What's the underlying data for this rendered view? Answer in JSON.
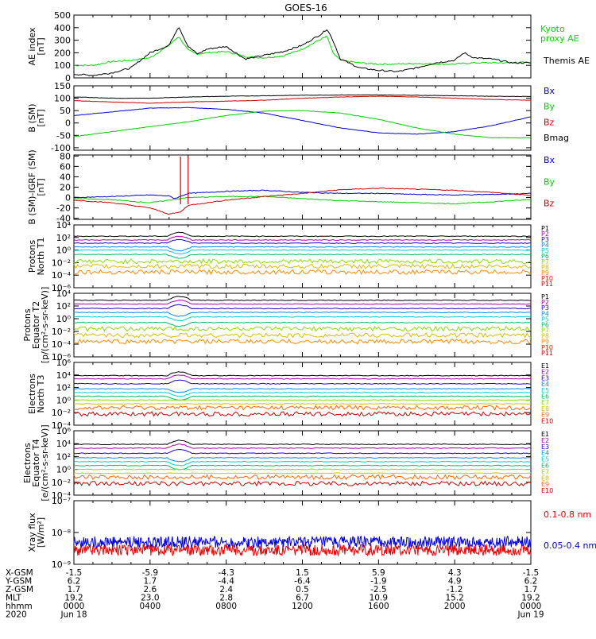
{
  "title": "GOES-16",
  "chart_data": [
    {
      "type": "line",
      "id": "ae",
      "ylabel": [
        "AE index",
        "[nT]"
      ],
      "yticks": [
        "500",
        "400",
        "300",
        "200",
        "100",
        "0"
      ],
      "ylim": [
        0,
        500
      ],
      "series": [
        {
          "name": "Kyoto proxy AE",
          "label_lines": [
            "Kyoto",
            "proxy AE"
          ],
          "color": "#00dd00",
          "x": [
            0,
            1,
            2,
            3,
            4,
            5,
            5.5,
            6,
            6.5,
            7,
            8,
            9,
            10,
            11,
            12,
            13,
            13.3,
            13.6,
            14,
            15,
            16,
            17,
            18,
            19,
            20,
            21,
            22,
            23,
            24
          ],
          "values": [
            100,
            100,
            130,
            140,
            160,
            260,
            330,
            220,
            190,
            200,
            210,
            170,
            160,
            175,
            230,
            310,
            330,
            200,
            140,
            120,
            110,
            110,
            115,
            110,
            110,
            120,
            120,
            120,
            125
          ]
        },
        {
          "name": "Themis AE",
          "label_lines": [
            "Themis AE"
          ],
          "color": "#000000",
          "x": [
            0,
            1,
            2,
            3,
            4,
            5,
            5.5,
            6,
            6.5,
            7,
            8,
            9,
            10,
            11,
            12,
            13,
            13.3,
            13.6,
            14,
            15,
            16,
            17,
            18,
            19,
            20,
            20.5,
            21,
            22,
            23,
            24
          ],
          "values": [
            30,
            20,
            40,
            80,
            200,
            260,
            410,
            250,
            190,
            230,
            250,
            150,
            180,
            210,
            260,
            350,
            390,
            300,
            150,
            80,
            60,
            50,
            80,
            120,
            140,
            200,
            160,
            150,
            120,
            120
          ]
        }
      ]
    },
    {
      "type": "line",
      "id": "bsm",
      "ylabel": [
        "B (SM)",
        "[nT]"
      ],
      "yticks": [
        "150",
        "100",
        "50",
        "0",
        "-50",
        "-100"
      ],
      "ylim": [
        -110,
        150
      ],
      "series": [
        {
          "name": "Bx",
          "color": "#0000dd",
          "x": [
            0,
            2,
            4,
            6,
            8,
            10,
            12,
            14,
            16,
            18,
            20,
            22,
            24
          ],
          "values": [
            30,
            45,
            60,
            62,
            55,
            40,
            10,
            -20,
            -40,
            -45,
            -35,
            -10,
            25
          ]
        },
        {
          "name": "By",
          "color": "#00cc00",
          "x": [
            0,
            2,
            4,
            6,
            8,
            10,
            12,
            14,
            16,
            18,
            20,
            22,
            24
          ],
          "values": [
            -55,
            -35,
            -15,
            5,
            30,
            48,
            50,
            40,
            15,
            -20,
            -45,
            -60,
            -60
          ]
        },
        {
          "name": "Bz",
          "color": "#cc0000",
          "x": [
            0,
            2,
            4,
            6,
            8,
            10,
            12,
            14,
            16,
            18,
            20,
            22,
            24
          ],
          "values": [
            90,
            85,
            80,
            85,
            88,
            92,
            100,
            105,
            108,
            105,
            100,
            95,
            92
          ]
        },
        {
          "name": "Bmag",
          "color": "#000000",
          "x": [
            0,
            2,
            4,
            6,
            8,
            10,
            12,
            14,
            16,
            18,
            20,
            22,
            24
          ],
          "values": [
            105,
            100,
            100,
            105,
            108,
            110,
            112,
            113,
            113,
            112,
            110,
            108,
            107
          ]
        }
      ]
    },
    {
      "type": "line",
      "id": "bigrf",
      "ylabel": [
        "B (SM)-IGRF (SM)",
        "[nT]"
      ],
      "yticks": [
        "80",
        "60",
        "40",
        "20",
        "0",
        "-20",
        "-40"
      ],
      "ylim": [
        -42,
        82
      ],
      "series": [
        {
          "name": "Bx",
          "color": "#0000dd",
          "x": [
            0,
            2,
            4,
            5,
            5.3,
            6,
            8,
            10,
            12,
            14,
            16,
            18,
            20,
            22,
            24
          ],
          "values": [
            0,
            2,
            5,
            3,
            -2,
            8,
            12,
            14,
            10,
            8,
            8,
            6,
            5,
            6,
            8
          ]
        },
        {
          "name": "By",
          "color": "#00cc00",
          "x": [
            0,
            2,
            4,
            6,
            8,
            10,
            12,
            14,
            16,
            18,
            20,
            22,
            24
          ],
          "values": [
            -2,
            -4,
            -10,
            0,
            2,
            2,
            -2,
            -6,
            -8,
            -10,
            -12,
            -8,
            -4
          ]
        },
        {
          "name": "Bz",
          "color": "#cc0000",
          "x": [
            0,
            2,
            4,
            5,
            5.6,
            6,
            8,
            10,
            12,
            14,
            16,
            18,
            20,
            22,
            24
          ],
          "values": [
            -5,
            -10,
            -20,
            -32,
            -28,
            -15,
            -5,
            2,
            8,
            15,
            18,
            16,
            14,
            10,
            4
          ]
        }
      ]
    },
    {
      "type": "line",
      "id": "protons_t1",
      "ylabel": [
        "Protons",
        "North T1"
      ],
      "yticks": [
        "10⁴",
        "10²",
        "10⁰",
        "10⁻²",
        "10⁻⁴",
        "10⁻⁶"
      ],
      "log": true,
      "ylim_exp": [
        -6,
        4
      ],
      "series": [
        {
          "name": "P1",
          "color": "#000000",
          "level": 2.2
        },
        {
          "name": "P2",
          "color": "#aa00aa",
          "level": 1.6
        },
        {
          "name": "P3",
          "color": "#2200cc",
          "level": 1.1
        },
        {
          "name": "P4",
          "color": "#0088ff",
          "level": 0.5
        },
        {
          "name": "P5",
          "color": "#00ccdd",
          "level": 0.0
        },
        {
          "name": "P6",
          "color": "#00bb66",
          "level": -0.7
        },
        {
          "name": "P7",
          "color": "#88dd00",
          "level": -1.8
        },
        {
          "name": "P8",
          "color": "#ddbb00",
          "level": -2.6
        },
        {
          "name": "P9",
          "color": "#ff8800",
          "level": -3.5
        },
        {
          "name": "P10",
          "color": "#dd2200",
          "level": null
        },
        {
          "name": "P11",
          "color": "#cc0000",
          "level": null
        }
      ]
    },
    {
      "type": "line",
      "id": "protons_t2",
      "ylabel": [
        "Protons",
        "Equator T2",
        "[p/(cm²-s-sr-keV)]"
      ],
      "yticks": [
        "10⁴",
        "10²",
        "10⁰",
        "10⁻²",
        "10⁻⁴",
        "10⁻⁶"
      ],
      "log": true,
      "ylim_exp": [
        -6,
        4
      ],
      "series": [
        {
          "name": "P1",
          "color": "#000000",
          "level": 2.9
        },
        {
          "name": "P2",
          "color": "#aa00aa",
          "level": 2.3
        },
        {
          "name": "P3",
          "color": "#2200cc",
          "level": 1.6
        },
        {
          "name": "P4",
          "color": "#0088ff",
          "level": 1.0
        },
        {
          "name": "P5",
          "color": "#00ccdd",
          "level": 0.3
        },
        {
          "name": "P6",
          "color": "#00bb66",
          "level": -0.6
        },
        {
          "name": "P7",
          "color": "#88dd00",
          "level": -1.6
        },
        {
          "name": "P8",
          "color": "#ddbb00",
          "level": -2.6
        },
        {
          "name": "P9",
          "color": "#ff8800",
          "level": -3.6
        },
        {
          "name": "P10",
          "color": "#dd2200",
          "level": null
        },
        {
          "name": "P11",
          "color": "#cc0000",
          "level": null
        }
      ]
    },
    {
      "type": "line",
      "id": "electrons_t3",
      "ylabel": [
        "Electrons",
        "North T3"
      ],
      "yticks": [
        "10⁶",
        "10⁴",
        "10²",
        "10⁰",
        "10⁻²",
        "10⁻⁴"
      ],
      "log": true,
      "ylim_exp": [
        -4,
        6
      ],
      "series": [
        {
          "name": "E1",
          "color": "#000000",
          "level": 3.9
        },
        {
          "name": "E2",
          "color": "#aa00aa",
          "level": 3.4
        },
        {
          "name": "E3",
          "color": "#2200cc",
          "level": 2.6
        },
        {
          "name": "E4",
          "color": "#0088ff",
          "level": 1.8
        },
        {
          "name": "E5",
          "color": "#00ccdd",
          "level": 1.2
        },
        {
          "name": "E6",
          "color": "#00bb66",
          "level": 0.6
        },
        {
          "name": "E7",
          "color": "#88dd00",
          "level": 0.0
        },
        {
          "name": "E8",
          "color": "#ddbb00",
          "level": -0.6
        },
        {
          "name": "E9",
          "color": "#ff6600",
          "level": -1.2
        },
        {
          "name": "E10",
          "color": "#cc0000",
          "level": -2.2
        }
      ]
    },
    {
      "type": "line",
      "id": "electrons_t4",
      "ylabel": [
        "Electrons",
        "Equator T4",
        "[e/(cm²-s-sr-keV)]"
      ],
      "yticks": [
        "10⁶",
        "10⁴",
        "10²",
        "10⁰",
        "10⁻²",
        "10⁻⁴"
      ],
      "log": true,
      "ylim_exp": [
        -4,
        6
      ],
      "series": [
        {
          "name": "E1",
          "color": "#000000",
          "level": 3.9
        },
        {
          "name": "E2",
          "color": "#aa00aa",
          "level": 3.3
        },
        {
          "name": "E3",
          "color": "#2200cc",
          "level": 2.5
        },
        {
          "name": "E4",
          "color": "#0088ff",
          "level": 1.8
        },
        {
          "name": "E5",
          "color": "#00ccdd",
          "level": 1.2
        },
        {
          "name": "E6",
          "color": "#00bb66",
          "level": 0.6
        },
        {
          "name": "E7",
          "color": "#88dd00",
          "level": 0.0
        },
        {
          "name": "E8",
          "color": "#ddbb00",
          "level": -0.6
        },
        {
          "name": "E9",
          "color": "#ff6600",
          "level": -1.2
        },
        {
          "name": "E10",
          "color": "#cc0000",
          "level": -2.2
        }
      ]
    },
    {
      "type": "line",
      "id": "xray",
      "ylabel": [
        "Xray flux",
        "[W/m²]"
      ],
      "yticks": [
        "10⁻⁷",
        "10⁻⁸",
        "10⁻⁹"
      ],
      "log": true,
      "ylim_exp": [
        -9,
        -7
      ],
      "series": [
        {
          "name": "0.1-0.8 nm",
          "color": "#ee0000",
          "level": -8.55
        },
        {
          "name": "0.05-0.4 nm",
          "color": "#0000dd",
          "level": -8.3
        }
      ]
    }
  ],
  "xaxis": {
    "row_labels": [
      "X-GSM",
      "Y-GSM",
      "Z-GSM",
      "MLT",
      "hhmm",
      "2020"
    ],
    "columns": [
      [
        "-1.5",
        "6.2",
        "1.7",
        "19.2",
        "0000",
        "Jun 18"
      ],
      [
        "-5.9",
        "1.7",
        "2.6",
        "23.0",
        "0400",
        ""
      ],
      [
        "-4.3",
        "-4.4",
        "2.4",
        "2.8",
        "0800",
        ""
      ],
      [
        "1.5",
        "-6.4",
        "0.5",
        "6.7",
        "1200",
        ""
      ],
      [
        "5.9",
        "-1.9",
        "-2.5",
        "10.9",
        "1600",
        ""
      ],
      [
        "4.3",
        "4.9",
        "-1.2",
        "15.2",
        "2000",
        ""
      ],
      [
        "-1.5",
        "6.2",
        "1.7",
        "19.2",
        "0000",
        "Jun 19"
      ]
    ]
  }
}
